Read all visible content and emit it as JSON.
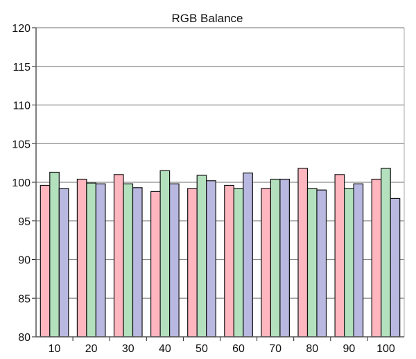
{
  "chart_data": {
    "type": "bar",
    "title": "RGB Balance",
    "xlabel": "",
    "ylabel": "",
    "categories": [
      "10",
      "20",
      "30",
      "40",
      "50",
      "60",
      "70",
      "80",
      "90",
      "100"
    ],
    "series": [
      {
        "values": [
          99.6,
          100.4,
          101.0,
          98.8,
          99.2,
          99.6,
          99.2,
          101.8,
          101.0,
          100.4
        ]
      },
      {
        "values": [
          101.3,
          99.9,
          99.8,
          101.5,
          100.9,
          99.2,
          100.4,
          99.2,
          99.2,
          101.8
        ]
      },
      {
        "values": [
          99.2,
          99.8,
          99.3,
          99.8,
          100.2,
          101.2,
          100.4,
          99.0,
          99.8,
          97.9
        ]
      }
    ],
    "colors": [
      "#ffb6bf",
      "#b3e0bd",
      "#b8b8e0"
    ],
    "ylim": [
      80,
      120
    ],
    "yticks": [
      80,
      85,
      90,
      95,
      100,
      105,
      110,
      115,
      120
    ],
    "ytick_labels": [
      "80",
      "85",
      "90",
      "95",
      "100",
      "105",
      "110",
      "115",
      "120"
    ],
    "grid": true,
    "legend": "none"
  }
}
